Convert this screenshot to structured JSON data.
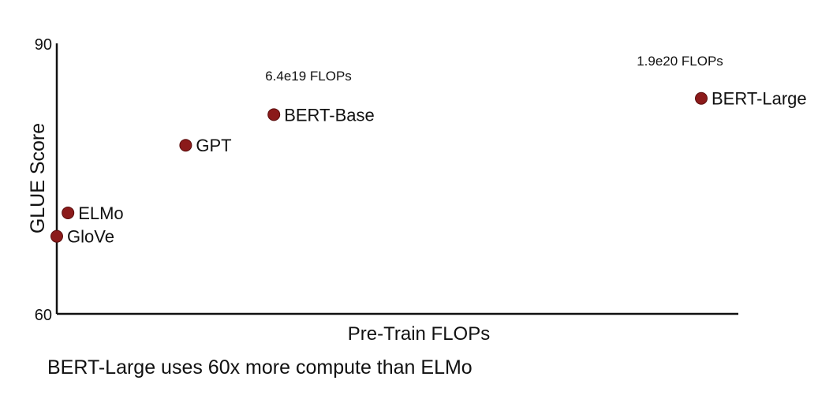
{
  "chart_data": {
    "type": "scatter",
    "title": "",
    "xlabel": "Pre-Train FLOPs",
    "ylabel": "GLUE Score",
    "ylim": [
      60,
      90
    ],
    "yticks": [
      "90",
      "60"
    ],
    "grid": false,
    "points": [
      {
        "label": "GloVe",
        "flops": 0,
        "glue": 68.6
      },
      {
        "label": "ELMo",
        "flops": 3.3e+18,
        "glue": 71.2
      },
      {
        "label": "GPT",
        "flops": 3.8e+19,
        "glue": 78.7
      },
      {
        "label": "BERT-Base",
        "flops": 6.4e+19,
        "glue": 82.1
      },
      {
        "label": "BERT-Large",
        "flops": 1.9e+20,
        "glue": 83.9
      }
    ],
    "annotations": [
      "6.4e19 FLOPs",
      "1.9e20 FLOPs"
    ],
    "marker_color": "#8b1a1a"
  },
  "caption": "BERT-Large uses 60x more compute than ELMo"
}
